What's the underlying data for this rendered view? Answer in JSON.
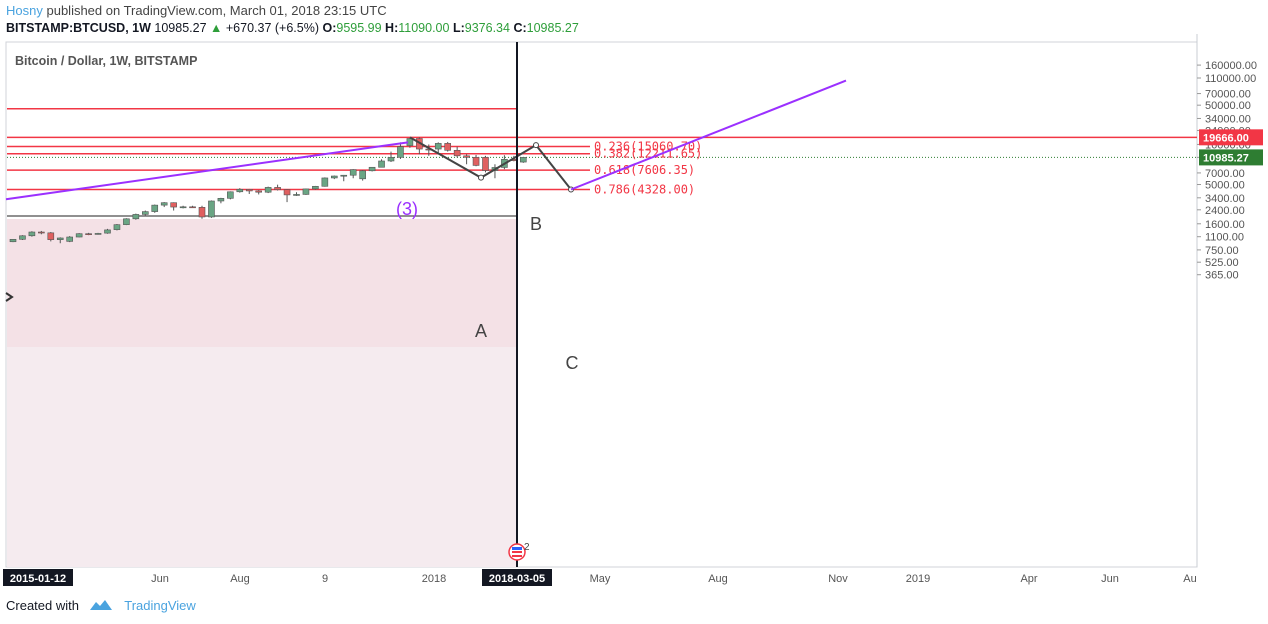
{
  "header": {
    "author": "Hosny",
    "published": "published on TradingView.com, March 01, 2018 23:15 UTC",
    "symbol": "BITSTAMP:BTCUSD, 1W",
    "last": "10985.27",
    "change": "+670.37 (+6.5%)",
    "open_label": "O:",
    "open": "9595.99",
    "high_label": "H:",
    "high": "11090.00",
    "low_label": "L:",
    "low": "9376.34",
    "close_label": "C:",
    "close": "10985.27"
  },
  "chart_title": "Bitcoin / Dollar, 1W, BITSTAMP",
  "footer": {
    "created_with": "Created with",
    "brand": "TradingView"
  },
  "colors": {
    "up": "#6aa584",
    "down": "#e06060",
    "fib": "#f23645",
    "purple": "#9b30ff",
    "shade": "#f5ebef",
    "green_label": "#2e7d32"
  },
  "chart_data": {
    "type": "candlestick",
    "title": "Bitcoin / Dollar, 1W, BITSTAMP",
    "y_scale": "log",
    "ylim": [
      330,
      190000
    ],
    "y_ticks": [
      "160000.00",
      "110000.00",
      "70000.00",
      "50000.00",
      "34000.00",
      "24000.00",
      "16000.00",
      "11000.00",
      "7000.00",
      "5000.00",
      "3400.00",
      "2400.00",
      "1600.00",
      "1100.00",
      "750.00",
      "525.00",
      "365.00"
    ],
    "x_ticks": [
      "2015-01-12",
      "Jun",
      "Aug",
      "9",
      "2018",
      "2018-03-05",
      "May",
      "Aug",
      "Nov",
      "2019",
      "Apr",
      "Jun",
      "Au"
    ],
    "highlighted_x_ticks": [
      "2015-01-12",
      "2018-03-05"
    ],
    "price_labels": [
      {
        "value": "19666.00",
        "color": "#f23645"
      },
      {
        "value": "10985.27",
        "color": "#2e7d32"
      }
    ],
    "candles": [
      {
        "o": 950,
        "h": 1030,
        "l": 940,
        "c": 1020
      },
      {
        "o": 1020,
        "h": 1150,
        "l": 1000,
        "c": 1130
      },
      {
        "o": 1130,
        "h": 1290,
        "l": 1100,
        "c": 1260
      },
      {
        "o": 1260,
        "h": 1300,
        "l": 1180,
        "c": 1230
      },
      {
        "o": 1230,
        "h": 1260,
        "l": 960,
        "c": 1010
      },
      {
        "o": 1010,
        "h": 1080,
        "l": 910,
        "c": 1060
      },
      {
        "o": 960,
        "h": 1120,
        "l": 940,
        "c": 1090
      },
      {
        "o": 1090,
        "h": 1220,
        "l": 1080,
        "c": 1200
      },
      {
        "o": 1200,
        "h": 1230,
        "l": 1150,
        "c": 1180
      },
      {
        "o": 1180,
        "h": 1230,
        "l": 1170,
        "c": 1210
      },
      {
        "o": 1220,
        "h": 1380,
        "l": 1200,
        "c": 1340
      },
      {
        "o": 1350,
        "h": 1590,
        "l": 1320,
        "c": 1560
      },
      {
        "o": 1560,
        "h": 1880,
        "l": 1540,
        "c": 1850
      },
      {
        "o": 1850,
        "h": 2150,
        "l": 1800,
        "c": 2100
      },
      {
        "o": 2100,
        "h": 2350,
        "l": 2000,
        "c": 2280
      },
      {
        "o": 2280,
        "h": 2800,
        "l": 2200,
        "c": 2750
      },
      {
        "o": 2750,
        "h": 3000,
        "l": 2600,
        "c": 2950
      },
      {
        "o": 2950,
        "h": 2980,
        "l": 2350,
        "c": 2600
      },
      {
        "o": 2600,
        "h": 2700,
        "l": 2500,
        "c": 2620
      },
      {
        "o": 2620,
        "h": 2700,
        "l": 2560,
        "c": 2580
      },
      {
        "o": 2580,
        "h": 2700,
        "l": 1850,
        "c": 1950
      },
      {
        "o": 1950,
        "h": 3150,
        "l": 1900,
        "c": 3100
      },
      {
        "o": 3100,
        "h": 3400,
        "l": 2900,
        "c": 3350
      },
      {
        "o": 3350,
        "h": 4100,
        "l": 3250,
        "c": 4050
      },
      {
        "o": 4050,
        "h": 4500,
        "l": 3950,
        "c": 4350
      },
      {
        "o": 4350,
        "h": 4400,
        "l": 3800,
        "c": 4150
      },
      {
        "o": 4150,
        "h": 4250,
        "l": 3750,
        "c": 4000
      },
      {
        "o": 4000,
        "h": 4700,
        "l": 3900,
        "c": 4600
      },
      {
        "o": 4600,
        "h": 4980,
        "l": 4200,
        "c": 4300
      },
      {
        "o": 4300,
        "h": 4350,
        "l": 3000,
        "c": 3700
      },
      {
        "o": 3700,
        "h": 4000,
        "l": 3600,
        "c": 3750
      },
      {
        "o": 3750,
        "h": 4450,
        "l": 3700,
        "c": 4400
      },
      {
        "o": 4400,
        "h": 4800,
        "l": 4300,
        "c": 4750
      },
      {
        "o": 4750,
        "h": 6150,
        "l": 4700,
        "c": 6050
      },
      {
        "o": 6050,
        "h": 6500,
        "l": 5850,
        "c": 6400
      },
      {
        "o": 6400,
        "h": 6600,
        "l": 5500,
        "c": 6550
      },
      {
        "o": 6550,
        "h": 7800,
        "l": 6000,
        "c": 7700
      },
      {
        "o": 5900,
        "h": 7600,
        "l": 5600,
        "c": 7450
      },
      {
        "o": 7450,
        "h": 8300,
        "l": 7300,
        "c": 8250
      },
      {
        "o": 8250,
        "h": 10400,
        "l": 8200,
        "c": 9900
      },
      {
        "o": 9900,
        "h": 13000,
        "l": 9600,
        "c": 11000
      },
      {
        "o": 11000,
        "h": 17000,
        "l": 10500,
        "c": 15000
      },
      {
        "o": 15500,
        "h": 19500,
        "l": 14500,
        "c": 19000
      },
      {
        "o": 19000,
        "h": 19666,
        "l": 12000,
        "c": 14000
      },
      {
        "o": 14000,
        "h": 16000,
        "l": 11500,
        "c": 13800
      },
      {
        "o": 14000,
        "h": 17000,
        "l": 12500,
        "c": 16500
      },
      {
        "o": 16500,
        "h": 17200,
        "l": 13000,
        "c": 13500
      },
      {
        "o": 13500,
        "h": 15000,
        "l": 11000,
        "c": 11500
      },
      {
        "o": 11500,
        "h": 12000,
        "l": 9000,
        "c": 11000
      },
      {
        "o": 11000,
        "h": 11800,
        "l": 8500,
        "c": 8700
      },
      {
        "o": 11000,
        "h": 11500,
        "l": 7100,
        "c": 7500
      },
      {
        "o": 7500,
        "h": 9000,
        "l": 6000,
        "c": 8200
      },
      {
        "o": 8200,
        "h": 11700,
        "l": 7800,
        "c": 10400
      },
      {
        "o": 10400,
        "h": 11500,
        "l": 9800,
        "c": 10000
      },
      {
        "o": 9596,
        "h": 11090,
        "l": 9376,
        "c": 10985
      }
    ],
    "horizontal_lines": [
      45000,
      19666,
      15060.7,
      12211.65,
      7606.35,
      4328.0
    ],
    "fib_labels": [
      "0.236(15060.70)",
      "0.382(12211.65)",
      "0.618(7606.35)",
      "0.786(4328.00)"
    ],
    "wave_labels": [
      "(3)",
      "A",
      "B",
      "C"
    ],
    "abc_path": [
      19666,
      6100,
      15700,
      4328
    ],
    "projection": [
      4328,
      102000
    ],
    "vertical_marker": "2018-03-05",
    "event_badge": "2"
  }
}
